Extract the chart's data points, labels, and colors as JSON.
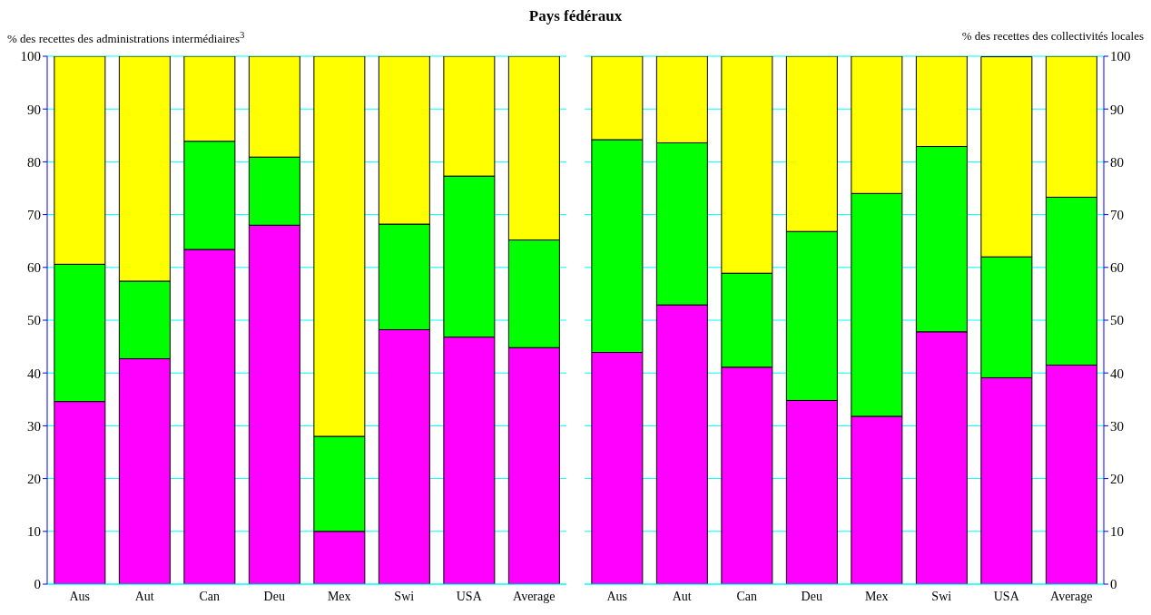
{
  "chart_data": [
    {
      "type": "bar",
      "title": "Pays fédéraux",
      "ylabel": "% des recettes des administrations intermédiaires$^{3}$",
      "categories": [
        "Aus",
        "Aut",
        "Can",
        "Deu",
        "Mex",
        "Swi",
        "USA",
        "Average"
      ],
      "stacked": true,
      "grid": "y",
      "ylim": [
        0,
        100
      ],
      "yticks": [
        0,
        10,
        20,
        30,
        40,
        50,
        60,
        70,
        80,
        90,
        100
      ],
      "series": [
        {
          "color": "#ff00ff",
          "values": [
            34.6,
            42.7,
            63.4,
            68.0,
            10.0,
            48.2,
            46.8,
            44.8
          ]
        },
        {
          "color": "#00ff00",
          "values": [
            26.0,
            14.7,
            20.5,
            12.9,
            18.0,
            20.0,
            30.5,
            20.4
          ]
        },
        {
          "color": "#ffff00",
          "values": [
            39.4,
            42.6,
            16.1,
            19.1,
            72.0,
            31.8,
            22.7,
            34.8
          ]
        }
      ]
    },
    {
      "type": "bar",
      "y2label": "% des recettes des collectivités locales",
      "categories": [
        "Aus",
        "Aut",
        "Can",
        "Deu",
        "Mex",
        "Swi",
        "USA",
        "Average"
      ],
      "stacked": true,
      "grid": "y",
      "y2lim": [
        0,
        100
      ],
      "y2ticks": [
        0,
        10,
        20,
        30,
        40,
        50,
        60,
        70,
        80,
        90,
        100
      ],
      "series": [
        {
          "color": "#ff00ff",
          "axis": "y2",
          "values": [
            43.9,
            52.9,
            41.1,
            34.8,
            31.8,
            47.8,
            39.1,
            41.5
          ]
        },
        {
          "color": "#00ff00",
          "axis": "y2",
          "values": [
            40.3,
            30.7,
            17.8,
            32.0,
            42.2,
            35.1,
            22.9,
            31.8
          ]
        },
        {
          "color": "#ffff00",
          "axis": "y2",
          "values": [
            15.8,
            16.4,
            41.1,
            33.2,
            26.0,
            17.1,
            37.9,
            26.7
          ]
        }
      ]
    }
  ]
}
